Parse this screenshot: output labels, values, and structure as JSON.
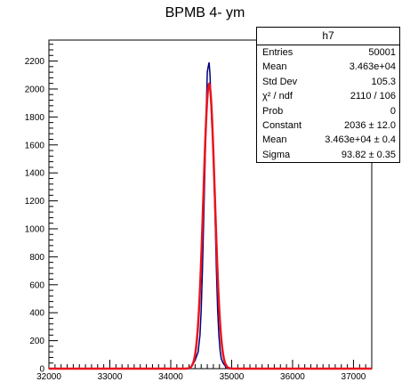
{
  "chart_data": {
    "type": "line",
    "title": "BPMB 4- ym",
    "xlabel": "",
    "ylabel": "",
    "xlim": [
      32000,
      37300
    ],
    "ylim": [
      0,
      2350
    ],
    "x_ticks": [
      32000,
      33000,
      34000,
      35000,
      36000,
      37000
    ],
    "y_ticks": [
      0,
      200,
      400,
      600,
      800,
      1000,
      1200,
      1400,
      1600,
      1800,
      2000,
      2200
    ],
    "histogram": {
      "name": "h7",
      "color": "#000080",
      "x": [
        34300,
        34350,
        34400,
        34450,
        34480,
        34500,
        34520,
        34540,
        34560,
        34580,
        34600,
        34615,
        34630,
        34645,
        34660,
        34675,
        34690,
        34710,
        34730,
        34750,
        34770,
        34790,
        34810,
        34830,
        34860,
        34900,
        34950
      ],
      "y": [
        0,
        20,
        60,
        120,
        240,
        420,
        700,
        1050,
        1400,
        1800,
        2120,
        2160,
        2190,
        2100,
        1900,
        1750,
        1680,
        1400,
        1050,
        700,
        420,
        240,
        130,
        70,
        40,
        15,
        0
      ]
    },
    "fit": {
      "function": "gaus",
      "color": "#e8141e",
      "constant": 2036,
      "mean": 34630,
      "sigma": 93.82
    }
  },
  "stats_box": {
    "title": "h7",
    "rows": [
      {
        "label": "Entries",
        "value": "50001"
      },
      {
        "label": "Mean",
        "value": "3.463e+04"
      },
      {
        "label": "Std Dev",
        "value": "105.3"
      },
      {
        "label": "χ² / ndf",
        "value": "2110 / 106"
      },
      {
        "label": "Prob",
        "value": "0"
      },
      {
        "label": "Constant",
        "value": "2036 ± 12.0"
      },
      {
        "label": "Mean",
        "value": "3.463e+04 ± 0.4"
      },
      {
        "label": "Sigma",
        "value": "93.82 ± 0.35"
      }
    ]
  },
  "colors": {
    "histogram": "#000080",
    "fit": "#e8141e",
    "axis": "#000000"
  }
}
